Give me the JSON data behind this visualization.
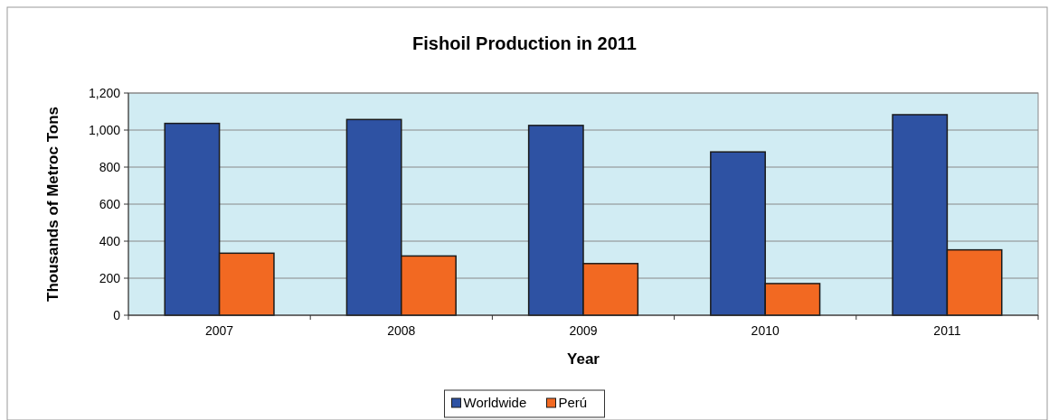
{
  "chart_data": {
    "type": "bar",
    "title": "Fishoil Production in 2011",
    "xlabel": "Year",
    "ylabel": "Thousands of Metroc Tons",
    "categories": [
      "2007",
      "2008",
      "2009",
      "2010",
      "2011"
    ],
    "series": [
      {
        "name": "Worldwide",
        "color": "#2e52a3",
        "values": [
          1036,
          1057,
          1025,
          882,
          1083
        ]
      },
      {
        "name": "Perú",
        "color": "#f26922",
        "values": [
          335,
          320,
          279,
          171,
          353
        ]
      }
    ],
    "ylim": [
      0,
      1200
    ],
    "yticks": [
      0,
      {
        "value": 200,
        "label": "200"
      },
      {
        "value": 400,
        "label": "400"
      },
      {
        "value": 600,
        "label": "600"
      },
      {
        "value": 800,
        "label": "800"
      },
      {
        "value": 1000,
        "label": "1,000"
      },
      {
        "value": 1200,
        "label": "1,200"
      }
    ],
    "grid": "y",
    "legend": "bottom"
  }
}
